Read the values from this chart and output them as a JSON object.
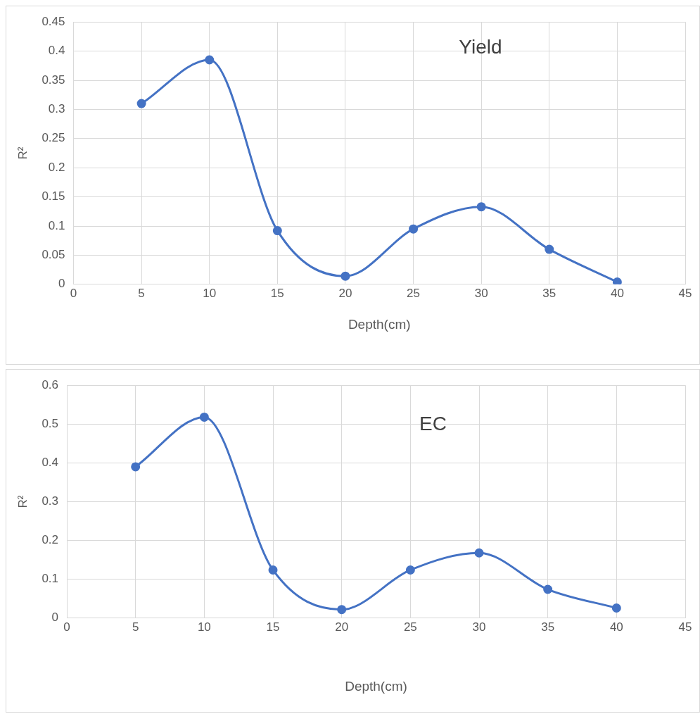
{
  "chart_data": [
    {
      "type": "line",
      "annotations": [
        "Yield"
      ],
      "xlabel": "Depth(cm)",
      "ylabel": "R²",
      "x": [
        5,
        10,
        15,
        20,
        25,
        30,
        35,
        40
      ],
      "series": [
        {
          "color": "#4472c4",
          "values": [
            0.31,
            0.385,
            0.092,
            0.014,
            0.095,
            0.133,
            0.06,
            0.004
          ]
        }
      ],
      "xlim": [
        0,
        45
      ],
      "xticks": [
        0,
        5,
        10,
        15,
        20,
        25,
        30,
        35,
        40,
        45
      ],
      "ylim": [
        0,
        0.45
      ],
      "yticks": [
        0,
        0.05,
        0.1,
        0.15,
        0.2,
        0.25,
        0.3,
        0.35,
        0.4,
        0.45
      ],
      "grid": true,
      "marker": "circle",
      "legend": false
    },
    {
      "type": "line",
      "annotations": [
        "EC"
      ],
      "xlabel": "Depth(cm)",
      "ylabel": "R²",
      "x": [
        5,
        10,
        15,
        20,
        25,
        30,
        35,
        40
      ],
      "series": [
        {
          "color": "#4472c4",
          "values": [
            0.39,
            0.518,
            0.124,
            0.022,
            0.124,
            0.168,
            0.074,
            0.026
          ]
        }
      ],
      "xlim": [
        0,
        45
      ],
      "xticks": [
        0,
        5,
        10,
        15,
        20,
        25,
        30,
        35,
        40,
        45
      ],
      "ylim": [
        0,
        0.6
      ],
      "yticks": [
        0,
        0.1,
        0.2,
        0.3,
        0.4,
        0.5,
        0.6
      ],
      "grid": true,
      "marker": "circle",
      "legend": false
    }
  ]
}
